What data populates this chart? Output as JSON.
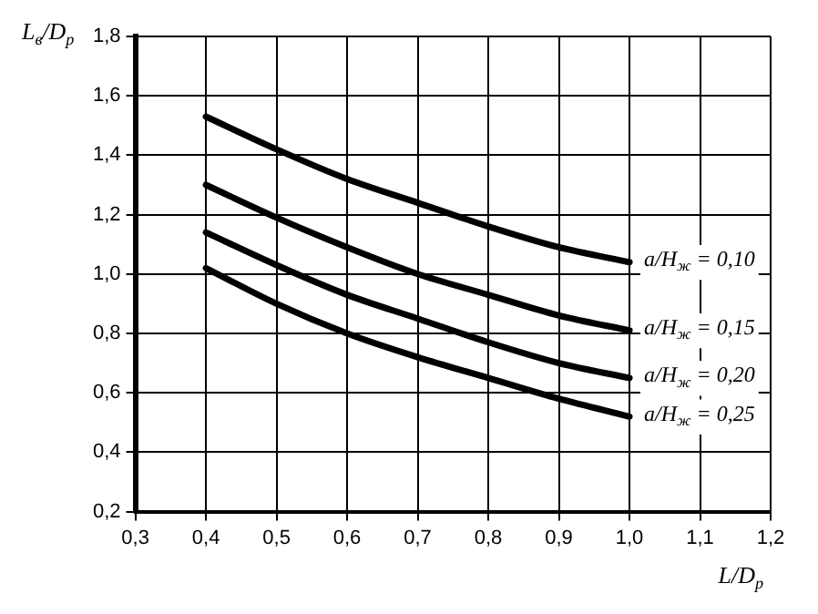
{
  "chart_data": {
    "type": "line",
    "xlabel": "L/D$_{р}$",
    "ylabel": "L$_{в}$/D$_{р}$",
    "x": [
      0.4,
      0.5,
      0.6,
      0.7,
      0.8,
      0.9,
      1.0
    ],
    "series": [
      {
        "name": "a/H$_{ж}$ = 0,10",
        "color": "#000000",
        "values": [
          1.53,
          1.42,
          1.32,
          1.24,
          1.16,
          1.09,
          1.04
        ]
      },
      {
        "name": "a/H$_{ж}$ = 0,15",
        "color": "#000000",
        "values": [
          1.3,
          1.19,
          1.09,
          1.0,
          0.93,
          0.86,
          0.81
        ]
      },
      {
        "name": "a/H$_{ж}$ = 0,20",
        "color": "#000000",
        "values": [
          1.14,
          1.03,
          0.93,
          0.85,
          0.77,
          0.7,
          0.65
        ]
      },
      {
        "name": "a/H$_{ж}$ = 0,25",
        "color": "#000000",
        "values": [
          1.02,
          0.9,
          0.8,
          0.72,
          0.65,
          0.58,
          0.52
        ]
      }
    ],
    "xlim": [
      0.3,
      1.2
    ],
    "xticks": [
      {
        "value": 0.3,
        "label": "0,3"
      },
      {
        "value": 0.4,
        "label": "0,4"
      },
      {
        "value": 0.5,
        "label": "0,5"
      },
      {
        "value": 0.6,
        "label": "0,6"
      },
      {
        "value": 0.7,
        "label": "0,7"
      },
      {
        "value": 0.8,
        "label": "0,8"
      },
      {
        "value": 0.9,
        "label": "0,9"
      },
      {
        "value": 1.0,
        "label": "1,0"
      },
      {
        "value": 1.1,
        "label": "1,1"
      },
      {
        "value": 1.2,
        "label": "1,2"
      }
    ],
    "ylim": [
      0.2,
      1.8
    ],
    "yticks": [
      {
        "value": 0.2,
        "label": "0,2"
      },
      {
        "value": 0.4,
        "label": "0,4"
      },
      {
        "value": 0.6,
        "label": "0,6"
      },
      {
        "value": 0.8,
        "label": "0,8"
      },
      {
        "value": 1.0,
        "label": "1,0"
      },
      {
        "value": 1.2,
        "label": "1,2"
      },
      {
        "value": 1.4,
        "label": "1,4"
      },
      {
        "value": 1.6,
        "label": "1,6"
      },
      {
        "value": 1.8,
        "label": "1,8"
      }
    ],
    "grid": true,
    "legend": false,
    "marker": "none",
    "line_style": "solid"
  }
}
